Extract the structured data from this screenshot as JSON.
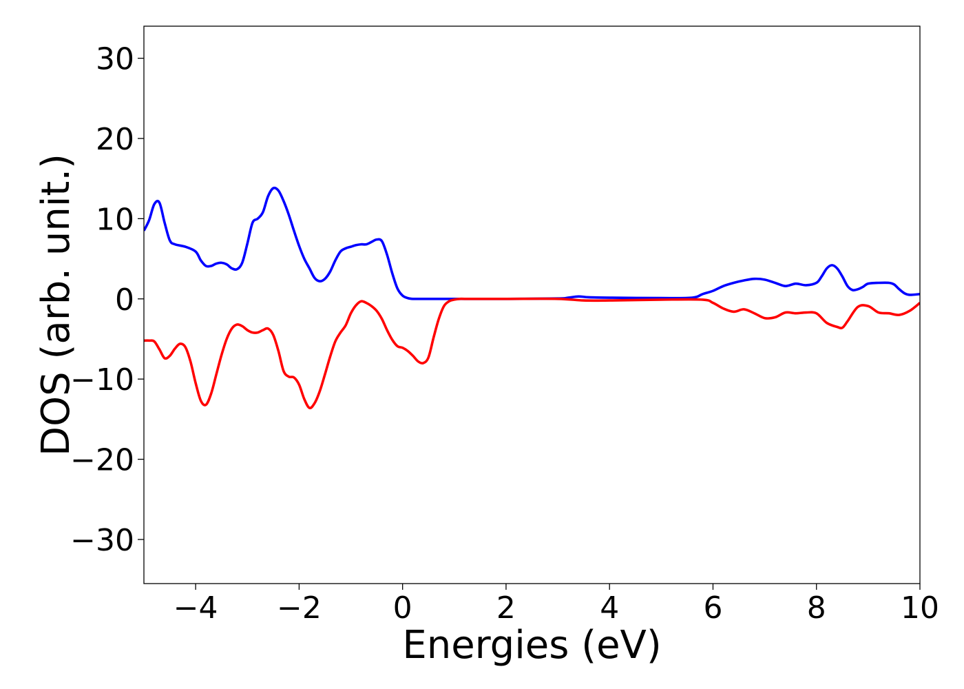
{
  "chart_data": {
    "type": "line",
    "title": "",
    "xlabel": "Energies (eV)",
    "ylabel": "DOS (arb. unit.)",
    "xlim": [
      -5,
      10
    ],
    "ylim": [
      -35.5,
      34
    ],
    "xticks": [
      -4,
      -2,
      0,
      2,
      4,
      6,
      8,
      10
    ],
    "xtick_labels": [
      "−4",
      "−2",
      "0",
      "2",
      "4",
      "6",
      "8",
      "10"
    ],
    "yticks": [
      30,
      20,
      10,
      0,
      -10,
      -20,
      -30
    ],
    "ytick_labels": [
      "30",
      "20",
      "10",
      "0",
      "−10",
      "−20",
      "−30"
    ],
    "grid": false,
    "legend": "none",
    "series": [
      {
        "color": "#0000ff",
        "x": [
          -5.0,
          -4.9,
          -4.8,
          -4.7,
          -4.6,
          -4.5,
          -4.4,
          -4.2,
          -4.0,
          -3.9,
          -3.8,
          -3.7,
          -3.6,
          -3.5,
          -3.4,
          -3.3,
          -3.2,
          -3.1,
          -3.0,
          -2.9,
          -2.8,
          -2.7,
          -2.6,
          -2.5,
          -2.4,
          -2.3,
          -2.2,
          -2.1,
          -2.0,
          -1.9,
          -1.8,
          -1.7,
          -1.6,
          -1.5,
          -1.4,
          -1.3,
          -1.2,
          -1.1,
          -1.0,
          -0.9,
          -0.8,
          -0.7,
          -0.6,
          -0.5,
          -0.4,
          -0.3,
          -0.2,
          -0.1,
          0.0,
          0.1,
          0.2,
          0.5,
          1.0,
          2.0,
          3.0,
          3.2,
          3.4,
          3.6,
          4.0,
          5.0,
          5.6,
          5.8,
          6.0,
          6.2,
          6.4,
          6.6,
          6.8,
          7.0,
          7.2,
          7.4,
          7.6,
          7.8,
          8.0,
          8.1,
          8.2,
          8.3,
          8.4,
          8.5,
          8.6,
          8.7,
          8.8,
          8.9,
          9.0,
          9.2,
          9.4,
          9.5,
          9.6,
          9.7,
          9.8,
          10.0
        ],
        "y": [
          8.5,
          9.8,
          11.8,
          12.0,
          9.5,
          7.3,
          6.8,
          6.5,
          5.9,
          4.8,
          4.1,
          4.1,
          4.4,
          4.5,
          4.3,
          3.8,
          3.7,
          4.5,
          6.9,
          9.5,
          10.0,
          10.8,
          12.8,
          13.8,
          13.5,
          12.2,
          10.5,
          8.5,
          6.6,
          5.0,
          3.8,
          2.6,
          2.2,
          2.5,
          3.4,
          4.8,
          5.9,
          6.3,
          6.5,
          6.7,
          6.8,
          6.8,
          7.1,
          7.4,
          7.2,
          5.5,
          3.2,
          1.3,
          0.4,
          0.1,
          0.0,
          0.0,
          0.0,
          0.0,
          0.05,
          0.15,
          0.3,
          0.2,
          0.15,
          0.1,
          0.15,
          0.6,
          1.0,
          1.6,
          2.0,
          2.3,
          2.5,
          2.4,
          2.0,
          1.6,
          1.9,
          1.7,
          2.0,
          2.8,
          3.8,
          4.2,
          3.8,
          2.8,
          1.6,
          1.1,
          1.2,
          1.5,
          1.9,
          2.0,
          2.0,
          1.8,
          1.2,
          0.7,
          0.5,
          0.6
        ]
      },
      {
        "color": "#ff0000",
        "x": [
          -5.0,
          -4.9,
          -4.8,
          -4.7,
          -4.6,
          -4.5,
          -4.4,
          -4.3,
          -4.2,
          -4.1,
          -4.0,
          -3.9,
          -3.8,
          -3.7,
          -3.6,
          -3.5,
          -3.4,
          -3.3,
          -3.2,
          -3.1,
          -3.0,
          -2.9,
          -2.8,
          -2.7,
          -2.6,
          -2.5,
          -2.4,
          -2.3,
          -2.2,
          -2.1,
          -2.0,
          -1.9,
          -1.8,
          -1.7,
          -1.6,
          -1.5,
          -1.4,
          -1.3,
          -1.2,
          -1.1,
          -1.0,
          -0.9,
          -0.8,
          -0.7,
          -0.6,
          -0.5,
          -0.4,
          -0.3,
          -0.2,
          -0.1,
          0.0,
          0.1,
          0.2,
          0.3,
          0.4,
          0.5,
          0.6,
          0.7,
          0.8,
          0.9,
          1.0,
          1.1,
          1.2,
          1.5,
          2.0,
          3.0,
          3.5,
          4.0,
          5.0,
          5.8,
          6.0,
          6.2,
          6.4,
          6.6,
          6.8,
          7.0,
          7.2,
          7.4,
          7.6,
          7.8,
          8.0,
          8.2,
          8.4,
          8.5,
          8.6,
          8.8,
          9.0,
          9.2,
          9.4,
          9.6,
          9.8,
          10.0
        ],
        "y": [
          -5.2,
          -5.2,
          -5.3,
          -6.3,
          -7.4,
          -7.1,
          -6.2,
          -5.6,
          -6.0,
          -7.8,
          -10.5,
          -12.7,
          -13.2,
          -11.8,
          -9.4,
          -7.0,
          -5.0,
          -3.7,
          -3.2,
          -3.4,
          -3.9,
          -4.2,
          -4.2,
          -3.9,
          -3.7,
          -4.5,
          -6.5,
          -9.0,
          -9.7,
          -9.8,
          -10.7,
          -12.5,
          -13.6,
          -13.0,
          -11.5,
          -9.4,
          -7.2,
          -5.3,
          -4.2,
          -3.3,
          -1.8,
          -0.8,
          -0.3,
          -0.5,
          -0.9,
          -1.5,
          -2.5,
          -3.9,
          -5.1,
          -5.9,
          -6.1,
          -6.5,
          -7.1,
          -7.8,
          -8.0,
          -7.3,
          -4.8,
          -2.5,
          -0.9,
          -0.3,
          -0.1,
          0.0,
          0.0,
          0.0,
          0.0,
          0.0,
          -0.2,
          -0.2,
          -0.1,
          -0.1,
          -0.5,
          -1.2,
          -1.6,
          -1.3,
          -1.8,
          -2.4,
          -2.3,
          -1.7,
          -1.8,
          -1.7,
          -1.8,
          -3.0,
          -3.5,
          -3.6,
          -2.8,
          -1.0,
          -0.9,
          -1.7,
          -1.8,
          -2.0,
          -1.5,
          -0.5
        ]
      }
    ]
  }
}
